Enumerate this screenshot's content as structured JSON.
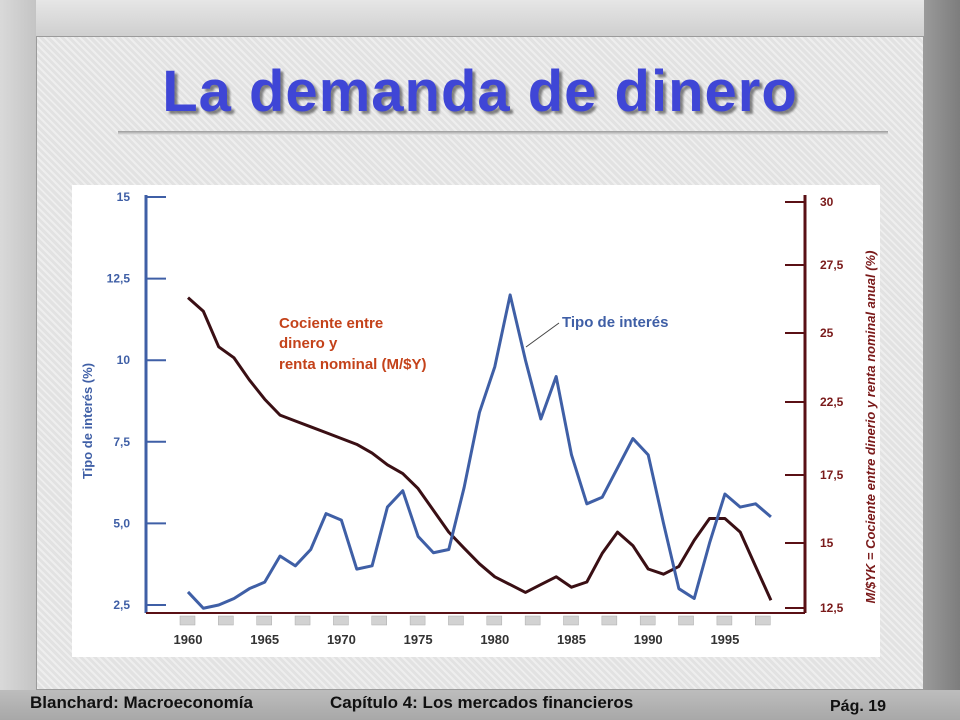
{
  "slide": {
    "title": "La demanda de dinero",
    "footer_left": "Blanchard: Macroeconomía",
    "footer_center": "Capítulo 4: Los mercados financieros",
    "footer_page": "Pág. 19"
  },
  "colors": {
    "title": "#3f46d6",
    "interest": "#3f5fa6",
    "ratio": "#3a0f14",
    "left_axis": "#3f5fa6",
    "right_axis": "#7a1a1a",
    "annotation_ratio": "#c4421a"
  },
  "chart_data": {
    "type": "line",
    "x": [
      1960,
      1961,
      1962,
      1963,
      1964,
      1965,
      1966,
      1967,
      1968,
      1969,
      1970,
      1971,
      1972,
      1973,
      1974,
      1975,
      1976,
      1977,
      1978,
      1979,
      1980,
      1981,
      1982,
      1983,
      1984,
      1985,
      1986,
      1987,
      1988,
      1989,
      1990,
      1991,
      1992,
      1993,
      1994,
      1995,
      1996,
      1997,
      1998
    ],
    "xticks": [
      1960,
      1965,
      1970,
      1975,
      1980,
      1985,
      1990,
      1995
    ],
    "series": [
      {
        "name": "Tipo de interés",
        "axis": "left",
        "values": [
          2.9,
          2.4,
          2.5,
          2.7,
          3.0,
          3.2,
          4.0,
          3.7,
          4.2,
          5.3,
          5.1,
          3.6,
          3.7,
          5.5,
          6.0,
          4.6,
          4.1,
          4.2,
          6.1,
          8.4,
          9.8,
          12.0,
          10.0,
          8.2,
          9.5,
          7.1,
          5.6,
          5.8,
          6.7,
          7.6,
          7.1,
          5.0,
          3.0,
          2.7,
          4.4,
          5.9,
          5.5,
          5.6,
          5.2
        ]
      },
      {
        "name": "Cociente entre dinero y renta nominal (M/$Y)",
        "axis": "right",
        "values": [
          26.3,
          25.8,
          24.5,
          24.1,
          23.3,
          22.6,
          21.6,
          21.2,
          20.8,
          20.4,
          20.0,
          19.6,
          19.0,
          18.2,
          17.6,
          17.0,
          16.2,
          15.4,
          14.8,
          14.2,
          13.7,
          13.4,
          13.1,
          13.4,
          13.7,
          13.3,
          13.5,
          14.6,
          15.4,
          14.9,
          14.0,
          13.8,
          14.1,
          15.1,
          15.9,
          15.9,
          15.4,
          14.1,
          12.8
        ]
      }
    ],
    "left_axis": {
      "label": "Tipo de interés (%)",
      "ticks": [
        "15",
        "12,5",
        "10",
        "7,5",
        "5,0",
        "2,5"
      ],
      "tick_values": [
        15,
        12.5,
        10,
        7.5,
        5.0,
        2.5
      ]
    },
    "right_axis": {
      "label": "M/$YK = Cociente entre dinerio y renta nominal anual (%)",
      "ticks": [
        "30",
        "27,5",
        "25",
        "22,5",
        "17,5",
        "15",
        "12,5"
      ]
    },
    "annotations": {
      "ratio_label_lines": [
        "Cociente entre",
        "dinero y",
        "renta nominal (M/$Y)"
      ],
      "interest_label": "Tipo de interés"
    }
  }
}
